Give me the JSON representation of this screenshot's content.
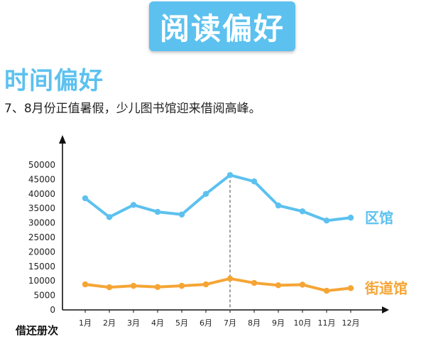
{
  "banner": {
    "title": "阅读偏好"
  },
  "section": {
    "title": "时间偏好",
    "description": "7、8月份正值暑假，少儿图书馆迎来借阅高峰。"
  },
  "colors": {
    "district": "#5cc1ef",
    "street": "#f5a535",
    "axis": "#111111",
    "guide": "#777777"
  },
  "chart_data": {
    "type": "line",
    "title": "",
    "xlabel": "",
    "ylabel": "借还册次",
    "ylim": [
      0,
      50000
    ],
    "yticks": [
      0,
      5000,
      10000,
      15000,
      20000,
      25000,
      30000,
      35000,
      40000,
      45000,
      50000
    ],
    "categories": [
      "1月",
      "2月",
      "3月",
      "4月",
      "5月",
      "6月",
      "7月",
      "8月",
      "9月",
      "10月",
      "11月",
      "12月"
    ],
    "series": [
      {
        "name": "区馆",
        "values": [
          38500,
          32000,
          36200,
          33800,
          32900,
          40000,
          46500,
          44300,
          36000,
          34000,
          30800,
          31800
        ]
      },
      {
        "name": "街道馆",
        "values": [
          8800,
          7800,
          8300,
          7900,
          8300,
          8800,
          10800,
          9300,
          8500,
          8700,
          6600,
          7500
        ]
      }
    ],
    "highlight_category": "7月",
    "grid": false,
    "legend": "inline-right"
  }
}
